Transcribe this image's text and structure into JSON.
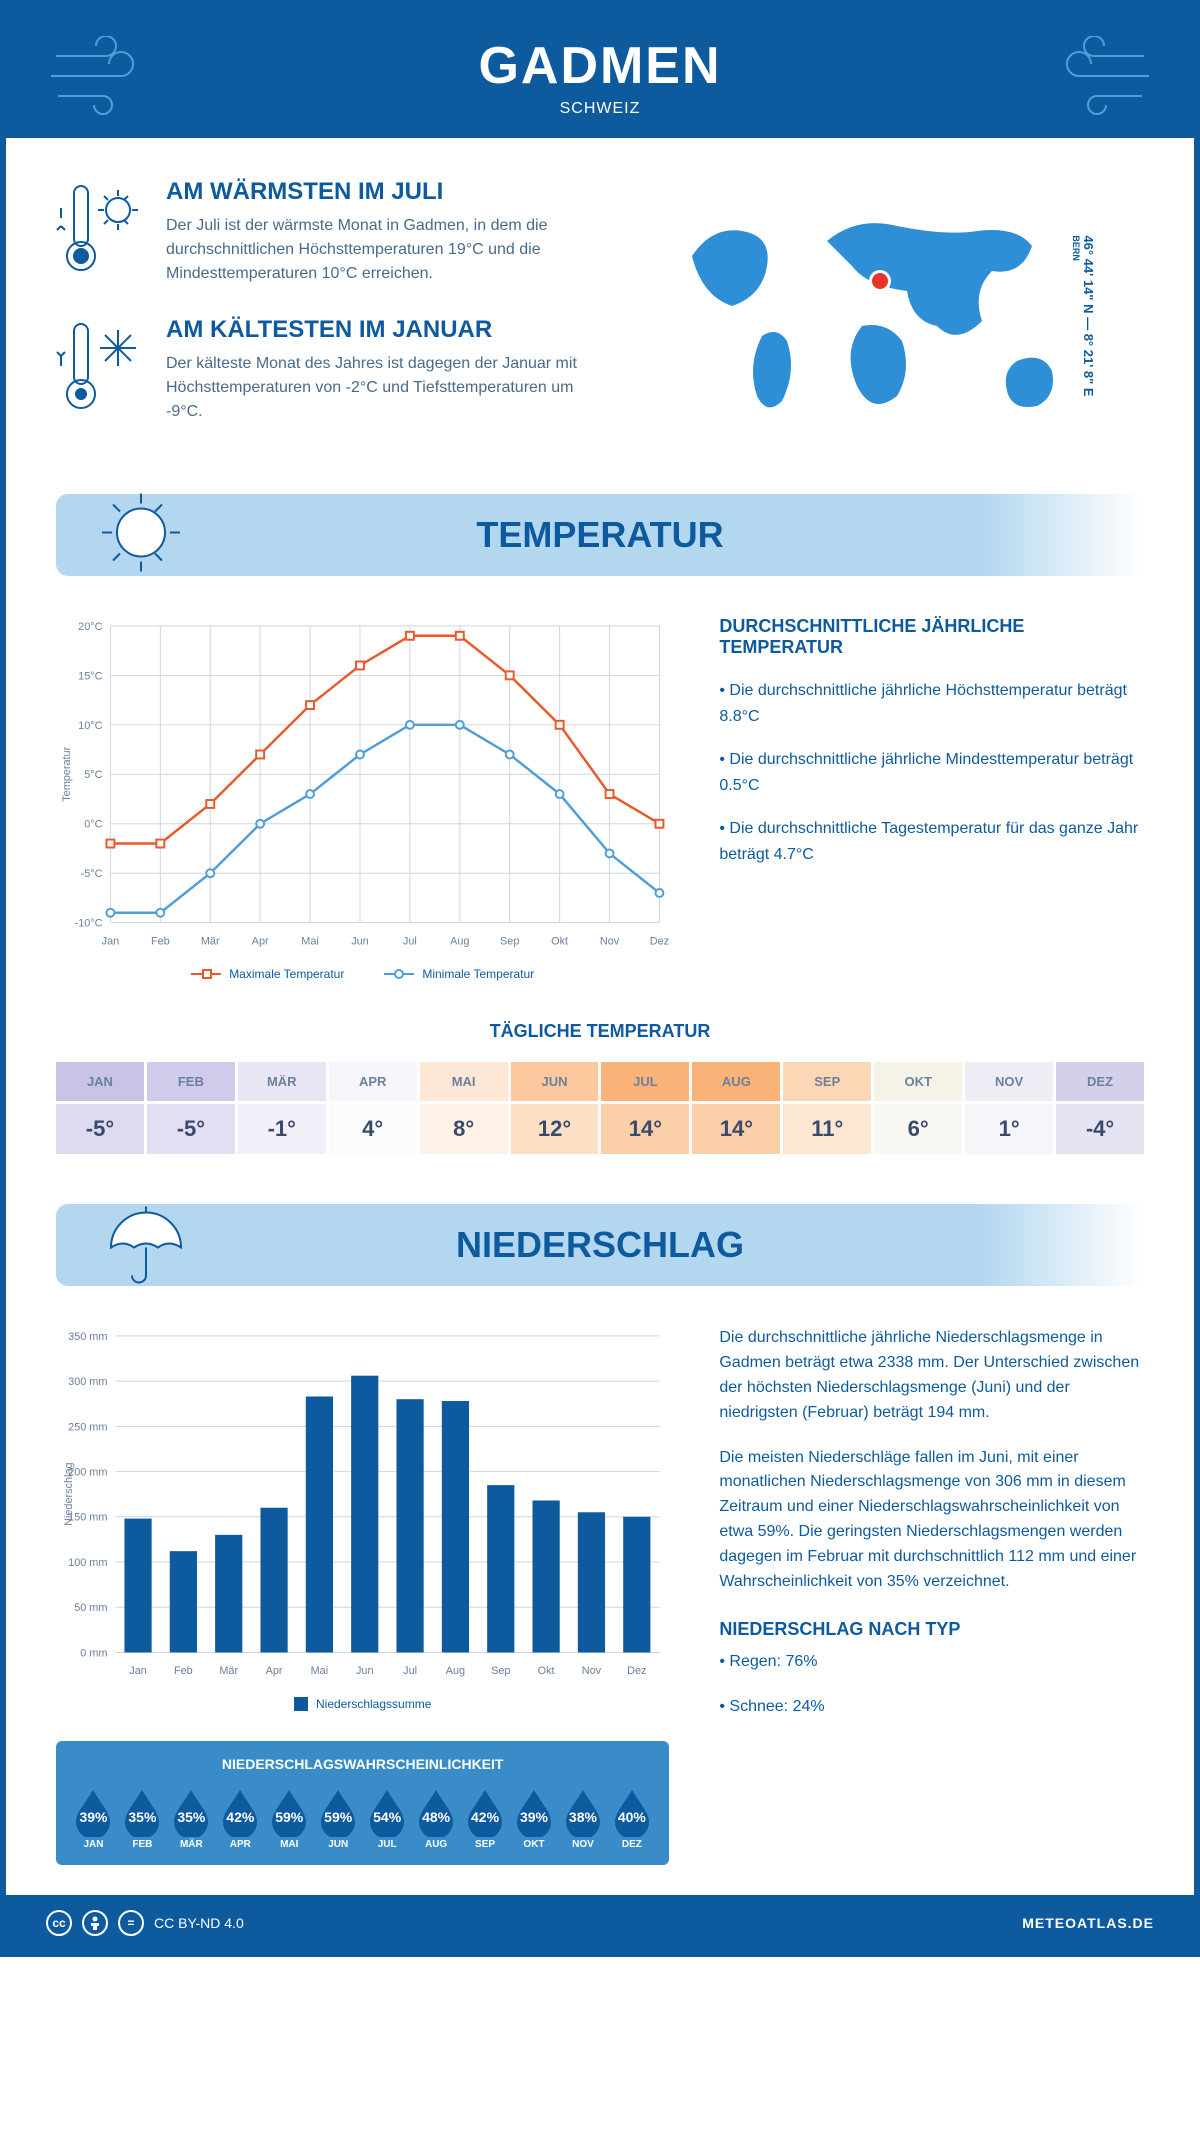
{
  "header": {
    "title": "GADMEN",
    "subtitle": "SCHWEIZ"
  },
  "coords": {
    "line": "46° 44' 14\" N — 8° 21' 8\" E",
    "city": "BERN"
  },
  "colors": {
    "primary": "#0e5a9e",
    "accent_blue": "#3a8cc9",
    "banner_bg": "#b4d7f0",
    "line_max": "#e85a2c",
    "line_min": "#4f9ed8",
    "grid": "#d0d5dd",
    "bar": "#0e5a9e",
    "drop": "#0e5a9e",
    "marker": "#e8342a"
  },
  "facts": {
    "warm": {
      "title": "AM WÄRMSTEN IM JULI",
      "text": "Der Juli ist der wärmste Monat in Gadmen, in dem die durchschnittlichen Höchsttemperaturen 19°C und die Mindesttemperaturen 10°C erreichen."
    },
    "cold": {
      "title": "AM KÄLTESTEN IM JANUAR",
      "text": "Der kälteste Monat des Jahres ist dagegen der Januar mit Höchsttemperaturen von -2°C und Tiefsttemperaturen um -9°C."
    }
  },
  "sections": {
    "temp": "TEMPERATUR",
    "precip": "NIEDERSCHLAG"
  },
  "temp_chart": {
    "months": [
      "Jan",
      "Feb",
      "Mär",
      "Apr",
      "Mai",
      "Jun",
      "Jul",
      "Aug",
      "Sep",
      "Okt",
      "Nov",
      "Dez"
    ],
    "max": [
      -2,
      -2,
      2,
      7,
      12,
      16,
      19,
      19,
      15,
      10,
      3,
      0
    ],
    "min": [
      -9,
      -9,
      -5,
      0,
      3,
      7,
      10,
      10,
      7,
      3,
      -3,
      -7
    ],
    "ymin": -10,
    "ymax": 20,
    "ystep": 5,
    "ylabel": "Temperatur",
    "legend_max": "Maximale Temperatur",
    "legend_min": "Minimale Temperatur"
  },
  "temp_info": {
    "title": "DURCHSCHNITTLICHE JÄHRLICHE TEMPERATUR",
    "b1": "• Die durchschnittliche jährliche Höchsttemperatur beträgt 8.8°C",
    "b2": "• Die durchschnittliche jährliche Mindesttemperatur beträgt 0.5°C",
    "b3": "• Die durchschnittliche Tagestemperatur für das ganze Jahr beträgt 4.7°C"
  },
  "daily_temp": {
    "title": "TÄGLICHE TEMPERATUR",
    "months": [
      "JAN",
      "FEB",
      "MÄR",
      "APR",
      "MAI",
      "JUN",
      "JUL",
      "AUG",
      "SEP",
      "OKT",
      "NOV",
      "DEZ"
    ],
    "values": [
      "-5°",
      "-5°",
      "-1°",
      "4°",
      "8°",
      "12°",
      "14°",
      "14°",
      "11°",
      "6°",
      "1°",
      "-4°"
    ],
    "header_bg": [
      "#c9c4e6",
      "#cfcbea",
      "#e8e5f4",
      "#f7f6fb",
      "#fde8d6",
      "#fbc99d",
      "#f9b277",
      "#f9b277",
      "#fcd7b5",
      "#f5f2e8",
      "#efedf6",
      "#d4d0ec"
    ],
    "val_bg": [
      "#dedbf0",
      "#e2dff2",
      "#f1eff8",
      "#fbfafc",
      "#fef2e8",
      "#fddfc5",
      "#fbcfa8",
      "#fbcfa8",
      "#fde7d3",
      "#f9f7f2",
      "#f6f5fa",
      "#e6e3f3"
    ]
  },
  "precip_chart": {
    "months": [
      "Jan",
      "Feb",
      "Mär",
      "Apr",
      "Mai",
      "Jun",
      "Jul",
      "Aug",
      "Sep",
      "Okt",
      "Nov",
      "Dez"
    ],
    "values": [
      148,
      112,
      130,
      160,
      283,
      306,
      280,
      278,
      185,
      168,
      155,
      150
    ],
    "ymin": 0,
    "ymax": 350,
    "ystep": 50,
    "ylabel": "Niederschlag",
    "legend": "Niederschlagssumme"
  },
  "precip_text": {
    "p1": "Die durchschnittliche jährliche Niederschlagsmenge in Gadmen beträgt etwa 2338 mm. Der Unterschied zwischen der höchsten Niederschlagsmenge (Juni) und der niedrigsten (Februar) beträgt 194 mm.",
    "p2": "Die meisten Niederschläge fallen im Juni, mit einer monatlichen Niederschlagsmenge von 306 mm in diesem Zeitraum und einer Niederschlagswahrscheinlichkeit von etwa 59%. Die geringsten Niederschlagsmengen werden dagegen im Februar mit durchschnittlich 112 mm und einer Wahrscheinlichkeit von 35% verzeichnet.",
    "type_title": "NIEDERSCHLAG NACH TYP",
    "type_b1": "• Regen: 76%",
    "type_b2": "• Schnee: 24%"
  },
  "precip_prob": {
    "title": "NIEDERSCHLAGSWAHRSCHEINLICHKEIT",
    "months": [
      "JAN",
      "FEB",
      "MÄR",
      "APR",
      "MAI",
      "JUN",
      "JUL",
      "AUG",
      "SEP",
      "OKT",
      "NOV",
      "DEZ"
    ],
    "values": [
      "39%",
      "35%",
      "35%",
      "42%",
      "59%",
      "59%",
      "54%",
      "48%",
      "42%",
      "39%",
      "38%",
      "40%"
    ]
  },
  "footer": {
    "license": "CC BY-ND 4.0",
    "site": "METEOATLAS.DE"
  }
}
